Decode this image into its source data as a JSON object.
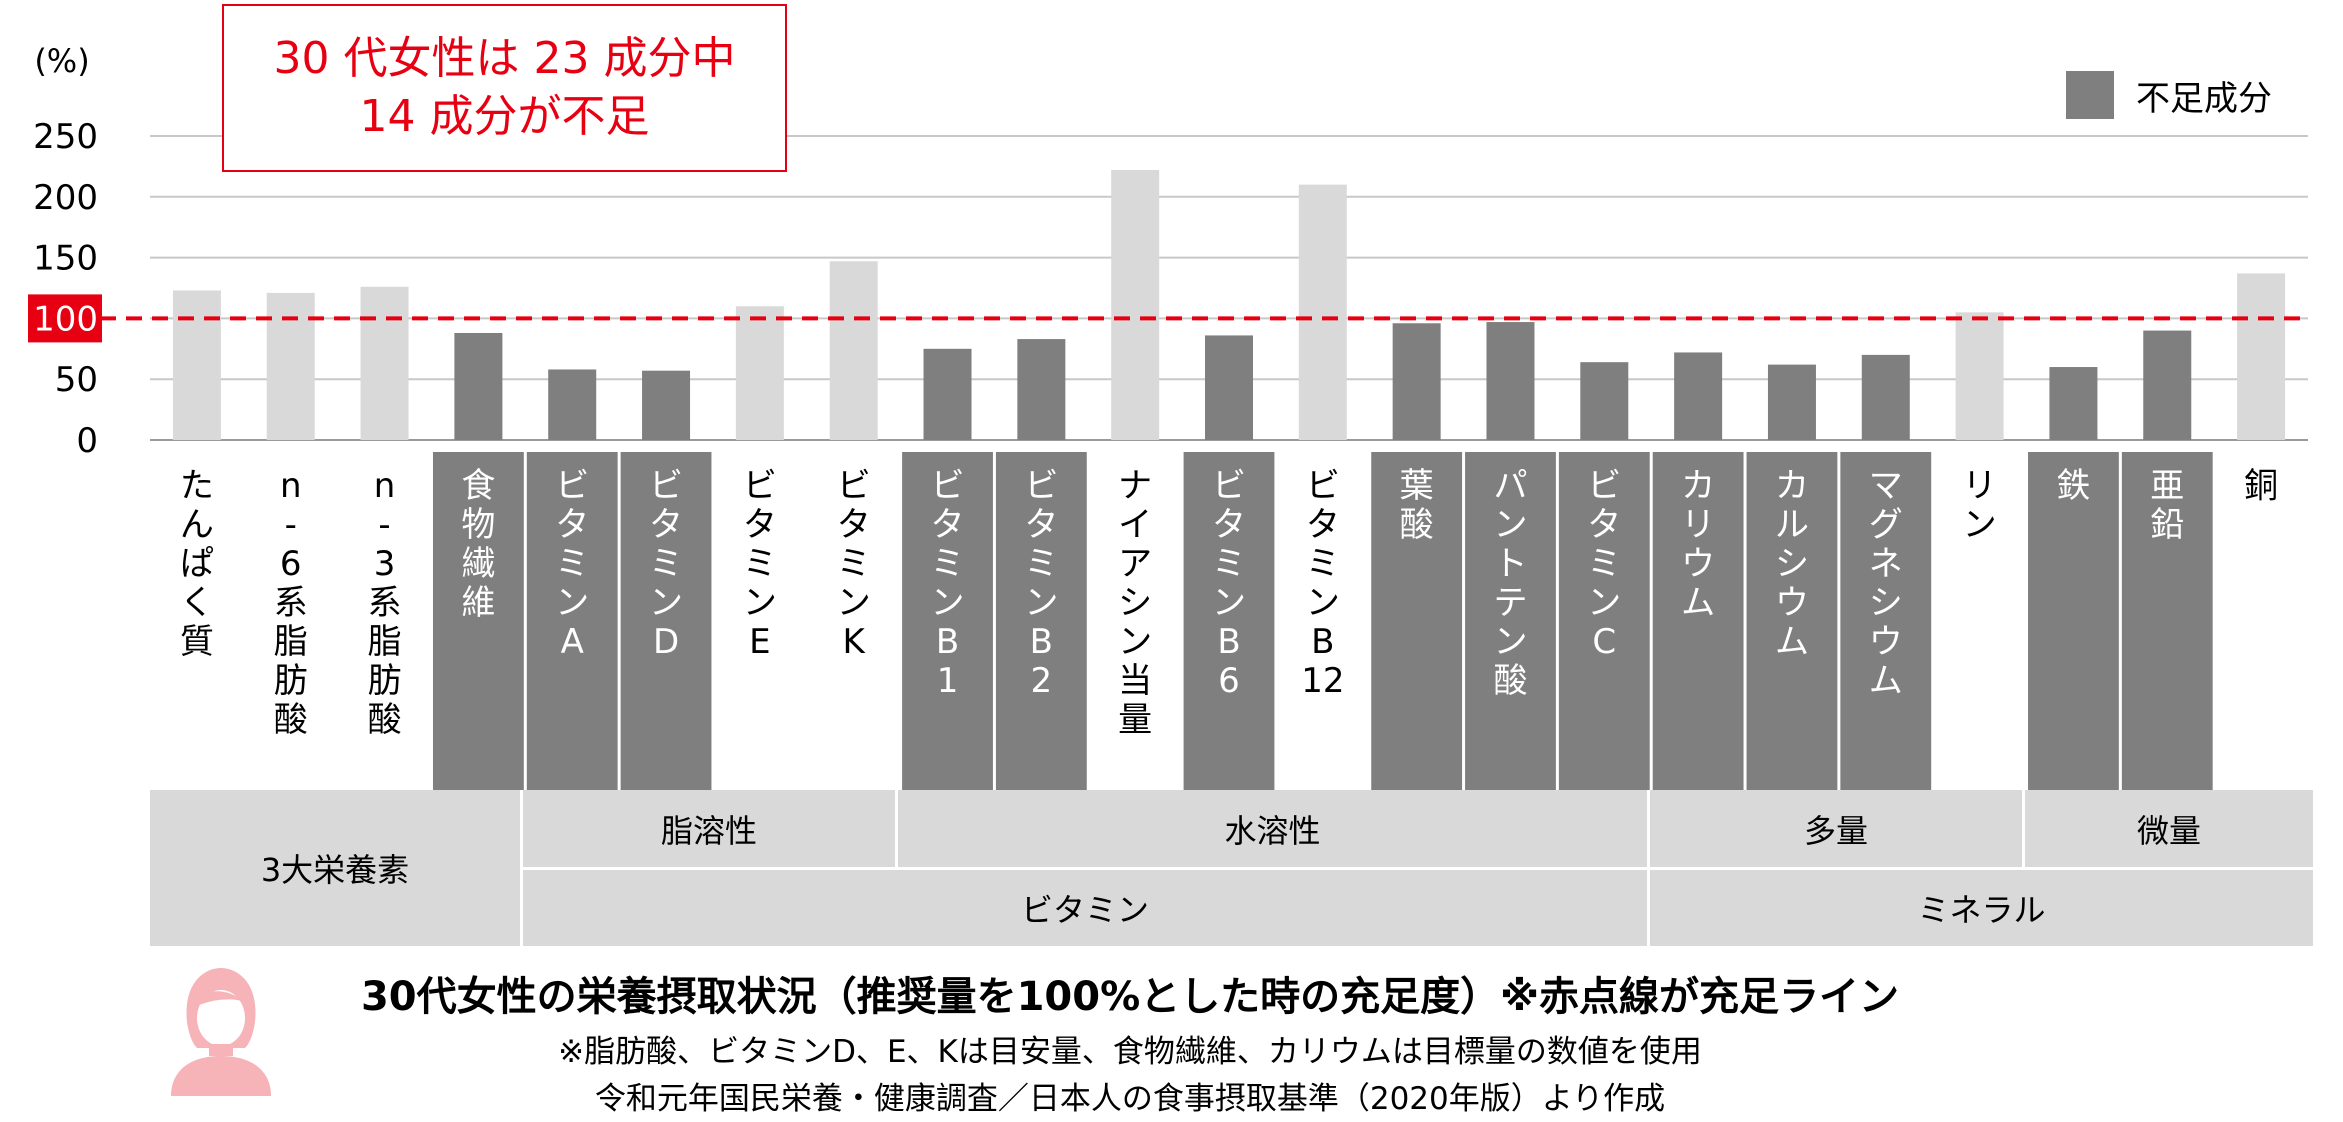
{
  "callout": {
    "line1": "30 代女性は 23 成分中",
    "line2": "14 成分が不足"
  },
  "legend": {
    "label": "不足成分",
    "swatch_color": "#7f7f7f"
  },
  "colors": {
    "deficient": "#7f7f7f",
    "sufficient": "#d9d9d9",
    "reference_line": "#e60012"
  },
  "groups": {
    "macro": "3大栄養素",
    "fat_soluble": "脂溶性",
    "water_soluble": "水溶性",
    "vitamin": "ビタミン",
    "major": "多量",
    "trace": "微量",
    "mineral": "ミネラル"
  },
  "caption": {
    "title": "30代女性の栄養摂取状況（推奨量を100%とした時の充足度）※赤点線が充足ライン",
    "note": "※脂肪酸、ビタミンD、E、Kは目安量、食物繊維、カリウムは目標量の数値を使用",
    "source": "令和元年国民栄養・健康調査／日本人の食事摂取基準（2020年版）より作成"
  },
  "chart_data": {
    "type": "bar",
    "ylabel": "(%)",
    "ylim": [
      0,
      250
    ],
    "yticks": [
      "0",
      "50",
      "100",
      "150",
      "200",
      "250"
    ],
    "grid": true,
    "reference_line": {
      "value": 100,
      "style": "dashed",
      "color": "#e60012"
    },
    "legend_position": "top-right",
    "categories": [
      "たんぱく質",
      "n-6系脂肪酸",
      "n-3系脂肪酸",
      "食物繊維",
      "ビタミンA",
      "ビタミンD",
      "ビタミンE",
      "ビタミンK",
      "ビタミンB1",
      "ビタミンB2",
      "ナイアシン当量",
      "ビタミンB6",
      "ビタミンB12",
      "葉酸",
      "パントテン酸",
      "ビタミンC",
      "カリウム",
      "カルシウム",
      "マグネシウム",
      "リン",
      "鉄",
      "亜鉛",
      "銅"
    ],
    "category_lines": [
      [
        "た",
        "ん",
        "ぱ",
        "く",
        "質"
      ],
      [
        "n",
        "-",
        "6",
        "系",
        "脂",
        "肪",
        "酸"
      ],
      [
        "n",
        "-",
        "3",
        "系",
        "脂",
        "肪",
        "酸"
      ],
      [
        "食",
        "物",
        "繊",
        "維"
      ],
      [
        "ビ",
        "タ",
        "ミ",
        "ン",
        "A"
      ],
      [
        "ビ",
        "タ",
        "ミ",
        "ン",
        "D"
      ],
      [
        "ビ",
        "タ",
        "ミ",
        "ン",
        "E"
      ],
      [
        "ビ",
        "タ",
        "ミ",
        "ン",
        "K"
      ],
      [
        "ビ",
        "タ",
        "ミ",
        "ン",
        "B",
        "1"
      ],
      [
        "ビ",
        "タ",
        "ミ",
        "ン",
        "B",
        "2"
      ],
      [
        "ナ",
        "イ",
        "ア",
        "シ",
        "ン",
        "当",
        "量"
      ],
      [
        "ビ",
        "タ",
        "ミ",
        "ン",
        "B",
        "6"
      ],
      [
        "ビ",
        "タ",
        "ミ",
        "ン",
        "B",
        "12"
      ],
      [
        "葉",
        "酸"
      ],
      [
        "パ",
        "ン",
        "ト",
        "テ",
        "ン",
        "酸"
      ],
      [
        "ビ",
        "タ",
        "ミ",
        "ン",
        "C"
      ],
      [
        "カ",
        "リ",
        "ウ",
        "ム"
      ],
      [
        "カ",
        "ル",
        "シ",
        "ウ",
        "ム"
      ],
      [
        "マ",
        "グ",
        "ネ",
        "シ",
        "ウ",
        "ム"
      ],
      [
        "リ",
        "ン"
      ],
      [
        "鉄"
      ],
      [
        "亜",
        "鉛"
      ],
      [
        "銅"
      ]
    ],
    "values": [
      123,
      121,
      126,
      88,
      58,
      57,
      110,
      147,
      75,
      83,
      222,
      86,
      210,
      96,
      97,
      64,
      72,
      62,
      70,
      105,
      60,
      90,
      137
    ],
    "deficient": [
      false,
      false,
      false,
      true,
      true,
      true,
      false,
      false,
      true,
      true,
      false,
      true,
      false,
      true,
      true,
      true,
      true,
      true,
      true,
      false,
      true,
      true,
      false
    ]
  }
}
